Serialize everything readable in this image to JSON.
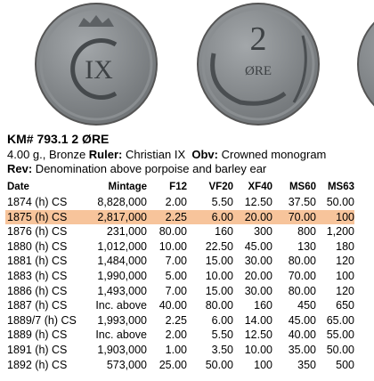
{
  "coins": {
    "obverse_monogram": "IX",
    "reverse_value": "2",
    "reverse_unit": "ØRE"
  },
  "header": {
    "title": "KM# 793.1  2 ØRE",
    "line1": [
      {
        "text": "4.00 g., Bronze ",
        "bold": false
      },
      {
        "text": "Ruler:",
        "bold": true
      },
      {
        "text": " Christian IX  ",
        "bold": false
      },
      {
        "text": "Obv:",
        "bold": true
      },
      {
        "text": " Crowned monogram",
        "bold": false
      }
    ],
    "line2": [
      {
        "text": "Rev:",
        "bold": true
      },
      {
        "text": " Denomination above porpoise and barley ear",
        "bold": false
      }
    ]
  },
  "table": {
    "columns": [
      "Date",
      "Mintage",
      "F12",
      "VF20",
      "XF40",
      "MS60",
      "MS63"
    ],
    "highlight": {
      "row": 1,
      "color": "#f7c49b"
    },
    "rows": [
      [
        "1874 (h) CS",
        "8,828,000",
        "2.00",
        "5.50",
        "12.50",
        "37.50",
        "50.00"
      ],
      [
        "1875 (h) CS",
        "2,817,000",
        "2.25",
        "6.00",
        "20.00",
        "70.00",
        "100"
      ],
      [
        "1876 (h) CS",
        "231,000",
        "80.00",
        "160",
        "300",
        "800",
        "1,200"
      ],
      [
        "1880 (h) CS",
        "1,012,000",
        "10.00",
        "22.50",
        "45.00",
        "130",
        "180"
      ],
      [
        "1881 (h) CS",
        "1,484,000",
        "7.00",
        "15.00",
        "30.00",
        "80.00",
        "120"
      ],
      [
        "1883 (h) CS",
        "1,990,000",
        "5.00",
        "10.00",
        "20.00",
        "70.00",
        "100"
      ],
      [
        "1886 (h) CS",
        "1,493,000",
        "7.00",
        "15.00",
        "30.00",
        "80.00",
        "120"
      ],
      [
        "1887 (h) CS",
        "Inc. above",
        "40.00",
        "80.00",
        "160",
        "450",
        "650"
      ],
      [
        "1889/7 (h) CS",
        "1,993,000",
        "2.25",
        "6.00",
        "14.00",
        "45.00",
        "65.00"
      ],
      [
        "1889 (h) CS",
        "Inc. above",
        "2.00",
        "5.50",
        "12.50",
        "40.00",
        "55.00"
      ],
      [
        "1891 (h) CS",
        "1,903,000",
        "1.00",
        "3.50",
        "10.00",
        "35.00",
        "50.00"
      ],
      [
        "1892 (h) CS",
        "573,000",
        "25.00",
        "50.00",
        "100",
        "350",
        "500"
      ]
    ]
  }
}
